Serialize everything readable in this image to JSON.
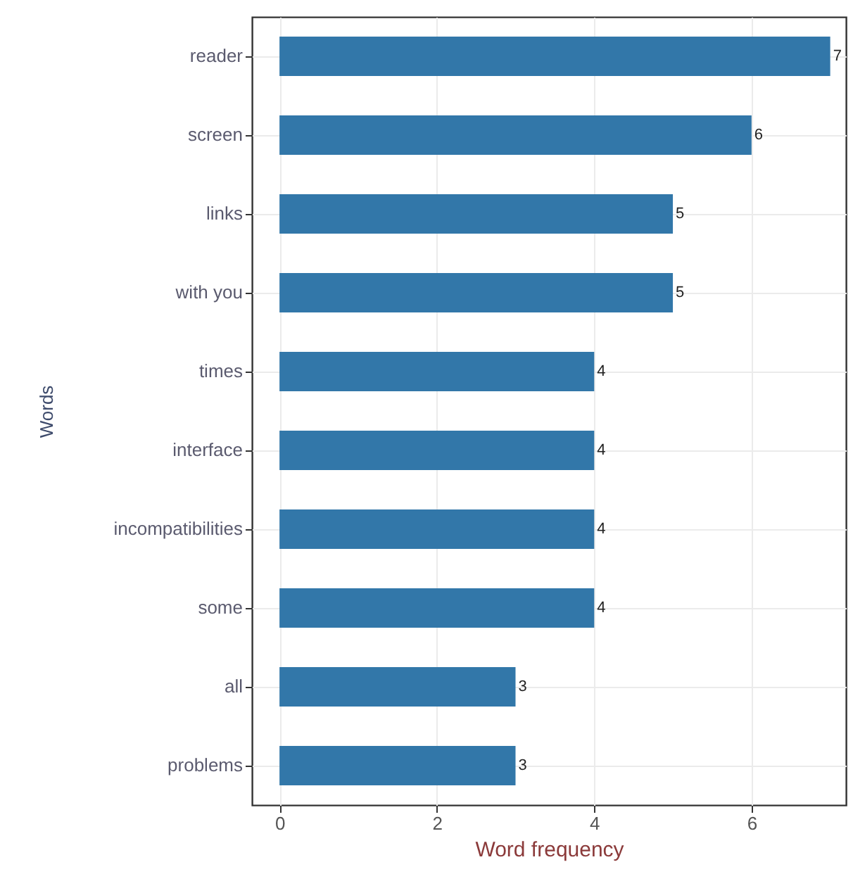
{
  "chart_data": {
    "type": "bar",
    "orientation": "horizontal",
    "xlabel": "Word frequency",
    "ylabel": "Words",
    "categories": [
      "reader",
      "screen",
      "links",
      "with you",
      "times",
      "interface",
      "incompatibilities",
      "some",
      "all",
      "problems"
    ],
    "values": [
      7,
      6,
      5,
      5,
      4,
      4,
      4,
      4,
      3,
      3
    ],
    "color": "#3277a9",
    "xlim": [
      -0.35,
      7.2
    ],
    "xticks": [
      0,
      2,
      4,
      6
    ],
    "grid": true,
    "data_labels": true
  }
}
